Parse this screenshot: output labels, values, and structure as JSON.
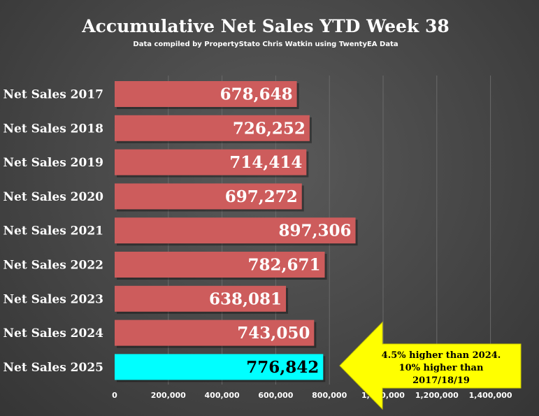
{
  "chart_data": {
    "type": "bar",
    "orientation": "horizontal",
    "title": "Accumulative Net Sales YTD Week 38",
    "subtitle": "Data compiled by PropertyStato Chris Watkin using TwentyEA Data",
    "categories": [
      "Net Sales 2017",
      "Net Sales 2018",
      "Net Sales 2019",
      "Net Sales 2020",
      "Net Sales 2021",
      "Net Sales 2022",
      "Net Sales 2023",
      "Net Sales 2024",
      "Net Sales 2025"
    ],
    "values": [
      678648,
      726252,
      714414,
      697272,
      897306,
      782671,
      638081,
      743050,
      776842
    ],
    "value_labels": [
      "678,648",
      "726,252",
      "714,414",
      "697,272",
      "897,306",
      "782,671",
      "638,081",
      "743,050",
      "776,842"
    ],
    "xlim": [
      0,
      1500000
    ],
    "x_ticks": [
      0,
      200000,
      400000,
      600000,
      800000,
      1000000,
      1200000,
      1400000
    ],
    "x_tick_labels": [
      "0",
      "200,000",
      "400,000",
      "600,000",
      "800,000",
      "1,000,000",
      "1,200,000",
      "1,400,000"
    ],
    "gridlines": true,
    "colors": {
      "bar": "#cd5c5c",
      "highlight_bar": "#00ffff",
      "value_label": "#ffffff",
      "highlight_value_label": "#000000",
      "callout_fill": "#ffff00"
    },
    "highlight_index": 8,
    "annotation": {
      "lines": [
        "4.5% higher than 2024.",
        "10% higher than",
        "2017/18/19"
      ],
      "shape": "left-arrow"
    }
  }
}
